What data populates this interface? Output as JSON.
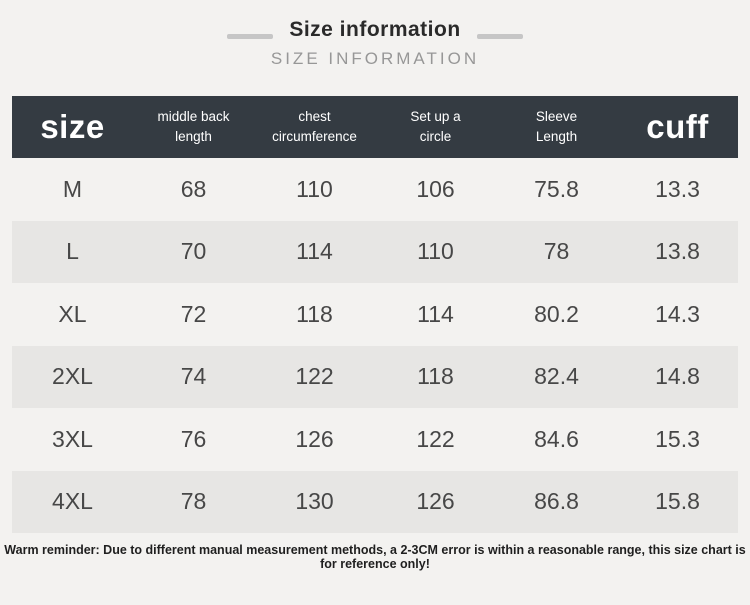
{
  "colors": {
    "page_bg": "#f3f2f0",
    "header_bg": "#343b42",
    "header_text": "#ffffff",
    "row_alt_bg": "#e7e6e4",
    "cell_text": "#474747",
    "title_text": "#2a2a2a",
    "subtitle_text": "#979797",
    "title_bar": "#c6c6c6"
  },
  "header_section": {
    "title": "Size information",
    "subtitle": "SIZE INFORMATION"
  },
  "table": {
    "header": [
      {
        "line1": "size",
        "line2": ""
      },
      {
        "line1": "middle back",
        "line2": "length"
      },
      {
        "line1": "chest",
        "line2": "circumference"
      },
      {
        "line1": "Set up a",
        "line2": "circle"
      },
      {
        "line1": "Sleeve",
        "line2": "Length"
      },
      {
        "line1": "cuff",
        "line2": ""
      }
    ]
  },
  "chart_data": {
    "type": "table",
    "title": "Size information",
    "columns": [
      "size",
      "middle back length",
      "chest circumference",
      "Set up a circle",
      "Sleeve Length",
      "cuff"
    ],
    "rows": [
      [
        "M",
        "68",
        "110",
        "106",
        "75.8",
        "13.3"
      ],
      [
        "L",
        "70",
        "114",
        "110",
        "78",
        "13.8"
      ],
      [
        "XL",
        "72",
        "118",
        "114",
        "80.2",
        "14.3"
      ],
      [
        "2XL",
        "74",
        "122",
        "118",
        "82.4",
        "14.8"
      ],
      [
        "3XL",
        "76",
        "126",
        "122",
        "84.6",
        "15.3"
      ],
      [
        "4XL",
        "78",
        "130",
        "126",
        "86.8",
        "15.8"
      ]
    ]
  },
  "footer": {
    "reminder": "Warm reminder: Due to different manual measurement methods, a 2-3CM error is within a reasonable range, this size chart is for reference only!"
  }
}
